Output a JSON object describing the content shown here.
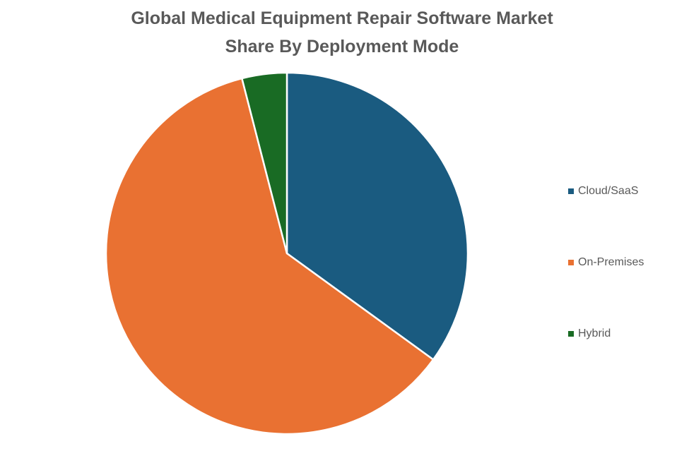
{
  "chart_data": {
    "type": "pie",
    "title": "Global Medical Equipment Repair Software Market Share By Deployment Mode",
    "title_lines": [
      "Global Medical Equipment Repair Software Market",
      "Share By Deployment Mode"
    ],
    "categories": [
      "Cloud/SaaS",
      "On-Premises",
      "Hybrid"
    ],
    "values": [
      35,
      61,
      4
    ],
    "unit": "%",
    "colors": [
      "#1a5b80",
      "#e97132",
      "#196b24"
    ],
    "start_angle": "12 o'clock",
    "direction": "clockwise",
    "legend_position": "right"
  }
}
